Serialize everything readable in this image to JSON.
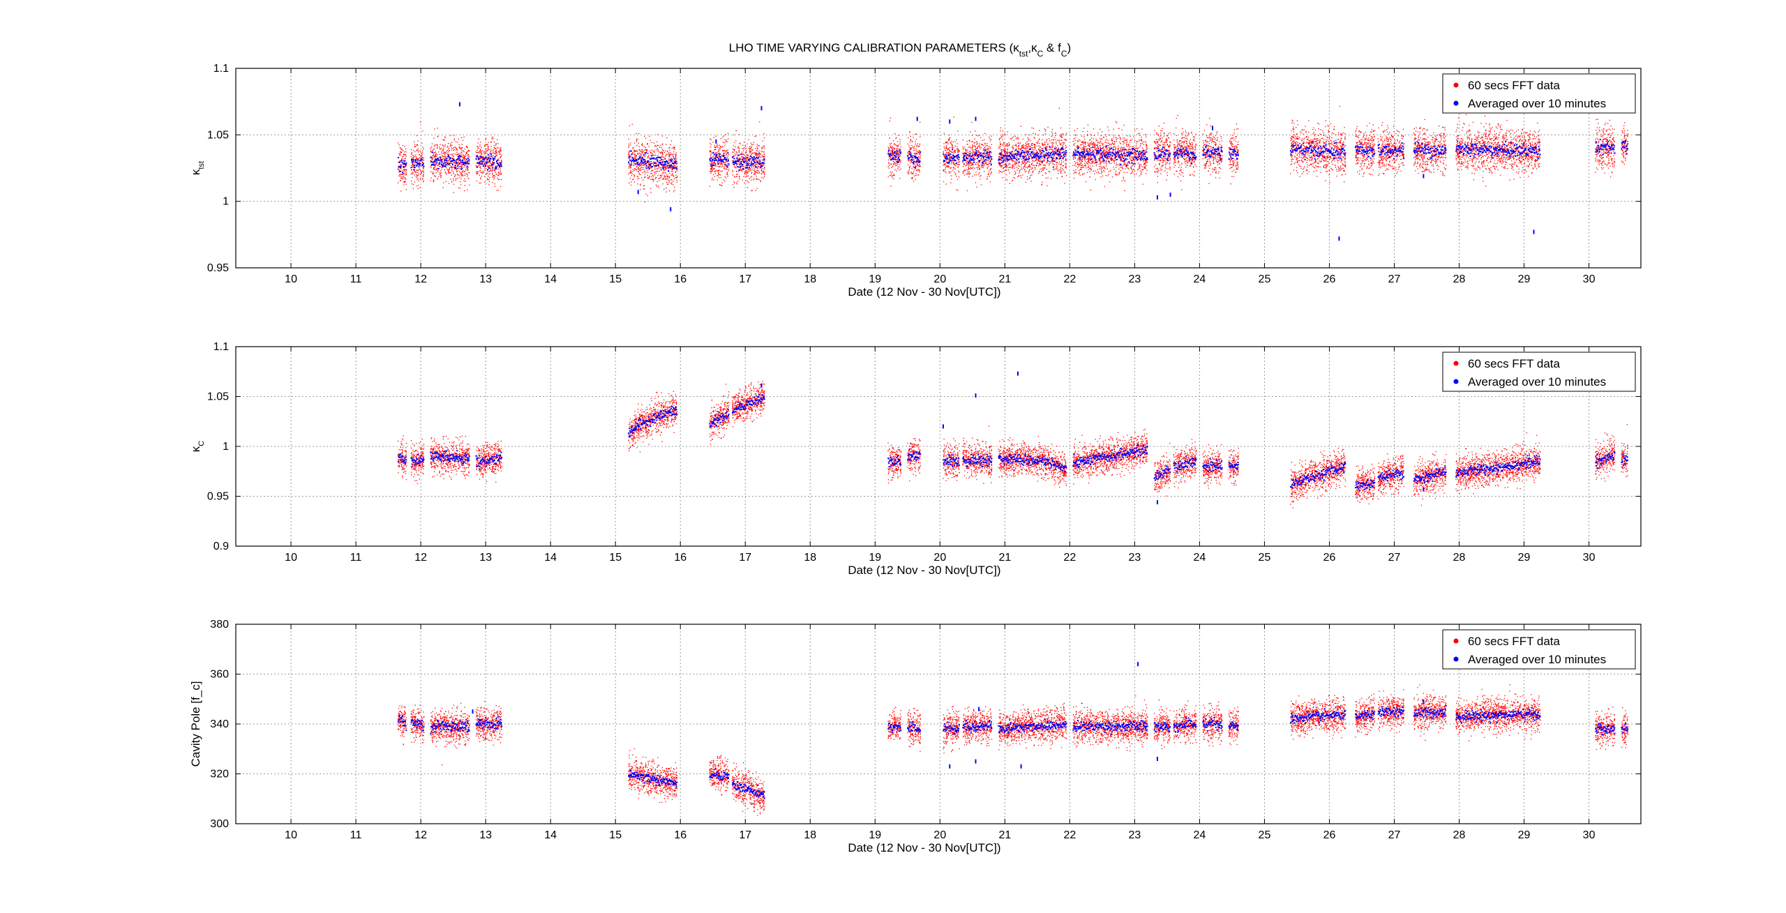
{
  "figure": {
    "title_main": "LHO TIME VARYING CALIBRATION PARAMETERS (",
    "title_k1": "κ",
    "title_k1_sub": "tst",
    "title_sep": ",",
    "title_k2": "κ",
    "title_k2_sub": "C",
    "title_amp": " & f",
    "title_f_sub": "C",
    "title_close": ")"
  },
  "colors": {
    "fft": "#ff0000",
    "avg": "#0000ff",
    "grid": "#9a9a9a"
  },
  "legend": {
    "fft": "60 secs FFT data",
    "avg": "Averaged over 10 minutes"
  },
  "chart_data": [
    {
      "type": "scatter",
      "ylabel": "κ",
      "ylabel_sub": "tst",
      "xlabel": "Date  (12 Nov - 30 Nov[UTC])",
      "xlim": [
        9.15,
        30.8
      ],
      "ylim": [
        0.95,
        1.1
      ],
      "xticks": [
        10,
        11,
        12,
        13,
        14,
        15,
        16,
        17,
        18,
        19,
        20,
        21,
        22,
        23,
        24,
        25,
        26,
        27,
        28,
        29,
        30
      ],
      "yticks": [
        0.95,
        1,
        1.05,
        1.1
      ],
      "ytick_labels": [
        "0.95",
        "1",
        "1.05",
        "1.1"
      ],
      "grid": true,
      "legend_position": "top-right",
      "noise_fft": 0.008,
      "noise_avg": 0.0025,
      "segments": [
        {
          "start": 11.65,
          "end": 11.78,
          "y_start": 1.027,
          "y_end": 1.027
        },
        {
          "start": 11.85,
          "end": 12.05,
          "y_start": 1.029,
          "y_end": 1.029
        },
        {
          "start": 12.15,
          "end": 12.75,
          "y_start": 1.03,
          "y_end": 1.029
        },
        {
          "start": 12.85,
          "end": 13.25,
          "y_start": 1.03,
          "y_end": 1.029
        },
        {
          "start": 15.2,
          "end": 15.95,
          "y_start": 1.031,
          "y_end": 1.027
        },
        {
          "start": 16.45,
          "end": 16.75,
          "y_start": 1.032,
          "y_end": 1.031
        },
        {
          "start": 16.8,
          "end": 17.3,
          "y_start": 1.03,
          "y_end": 1.029
        },
        {
          "start": 19.2,
          "end": 19.4,
          "y_start": 1.034,
          "y_end": 1.034
        },
        {
          "start": 19.5,
          "end": 19.7,
          "y_start": 1.033,
          "y_end": 1.033
        },
        {
          "start": 20.05,
          "end": 20.3,
          "y_start": 1.033,
          "y_end": 1.033
        },
        {
          "start": 20.35,
          "end": 20.8,
          "y_start": 1.033,
          "y_end": 1.033
        },
        {
          "start": 20.9,
          "end": 21.95,
          "y_start": 1.033,
          "y_end": 1.036
        },
        {
          "start": 22.05,
          "end": 23.2,
          "y_start": 1.036,
          "y_end": 1.034
        },
        {
          "start": 23.3,
          "end": 23.55,
          "y_start": 1.037,
          "y_end": 1.036
        },
        {
          "start": 23.6,
          "end": 23.95,
          "y_start": 1.036,
          "y_end": 1.036
        },
        {
          "start": 24.05,
          "end": 24.35,
          "y_start": 1.037,
          "y_end": 1.037
        },
        {
          "start": 24.45,
          "end": 24.6,
          "y_start": 1.036,
          "y_end": 1.036
        },
        {
          "start": 25.4,
          "end": 26.25,
          "y_start": 1.039,
          "y_end": 1.037
        },
        {
          "start": 26.4,
          "end": 26.7,
          "y_start": 1.039,
          "y_end": 1.038
        },
        {
          "start": 26.75,
          "end": 27.15,
          "y_start": 1.038,
          "y_end": 1.038
        },
        {
          "start": 27.3,
          "end": 27.8,
          "y_start": 1.039,
          "y_end": 1.038
        },
        {
          "start": 27.95,
          "end": 29.25,
          "y_start": 1.039,
          "y_end": 1.038
        },
        {
          "start": 30.1,
          "end": 30.4,
          "y_start": 1.04,
          "y_end": 1.04
        },
        {
          "start": 30.5,
          "end": 30.6,
          "y_start": 1.041,
          "y_end": 1.041
        }
      ],
      "outliers": [
        {
          "x": 12.6,
          "y": 1.073
        },
        {
          "x": 15.35,
          "y": 1.007
        },
        {
          "x": 15.85,
          "y": 0.994
        },
        {
          "x": 17.25,
          "y": 1.07
        },
        {
          "x": 19.65,
          "y": 1.062
        },
        {
          "x": 20.15,
          "y": 1.06
        },
        {
          "x": 20.55,
          "y": 1.062
        },
        {
          "x": 23.35,
          "y": 1.003
        },
        {
          "x": 23.55,
          "y": 1.005
        },
        {
          "x": 24.2,
          "y": 1.055
        },
        {
          "x": 26.15,
          "y": 0.972
        },
        {
          "x": 27.45,
          "y": 1.019
        },
        {
          "x": 29.15,
          "y": 0.977
        },
        {
          "x": 16.55,
          "y": 1.045
        }
      ]
    },
    {
      "type": "scatter",
      "ylabel": "κ",
      "ylabel_sub": "C",
      "xlabel": "Date  (12 Nov - 30 Nov[UTC])",
      "xlim": [
        9.15,
        30.8
      ],
      "ylim": [
        0.9,
        1.1
      ],
      "xticks": [
        10,
        11,
        12,
        13,
        14,
        15,
        16,
        17,
        18,
        19,
        20,
        21,
        22,
        23,
        24,
        25,
        26,
        27,
        28,
        29,
        30
      ],
      "yticks": [
        0.9,
        0.95,
        1,
        1.05,
        1.1
      ],
      "ytick_labels": [
        "0.9",
        "0.95",
        "1",
        "1.05",
        "1.1"
      ],
      "grid": true,
      "legend_position": "top-right",
      "noise_fft": 0.008,
      "noise_avg": 0.0025,
      "segments": [
        {
          "start": 11.65,
          "end": 11.78,
          "y_start": 0.99,
          "y_end": 0.985
        },
        {
          "start": 11.85,
          "end": 12.05,
          "y_start": 0.984,
          "y_end": 0.987
        },
        {
          "start": 12.15,
          "end": 12.75,
          "y_start": 0.99,
          "y_end": 0.988
        },
        {
          "start": 12.85,
          "end": 13.25,
          "y_start": 0.984,
          "y_end": 0.989
        },
        {
          "start": 15.2,
          "end": 15.95,
          "y_start": 1.008,
          "y_end": 1.036,
          "curve": "sqrt"
        },
        {
          "start": 16.45,
          "end": 16.75,
          "y_start": 1.018,
          "y_end": 1.033,
          "curve": "sqrt"
        },
        {
          "start": 16.8,
          "end": 17.3,
          "y_start": 1.037,
          "y_end": 1.049
        },
        {
          "start": 19.2,
          "end": 19.4,
          "y_start": 0.984,
          "y_end": 0.985
        },
        {
          "start": 19.5,
          "end": 19.7,
          "y_start": 0.99,
          "y_end": 0.992
        },
        {
          "start": 20.05,
          "end": 20.3,
          "y_start": 0.986,
          "y_end": 0.984
        },
        {
          "start": 20.35,
          "end": 20.8,
          "y_start": 0.986,
          "y_end": 0.986
        },
        {
          "start": 20.9,
          "end": 21.95,
          "y_start": 0.988,
          "y_end": 0.975,
          "curve": "late-drop"
        },
        {
          "start": 22.05,
          "end": 23.2,
          "y_start": 0.983,
          "y_end": 0.997
        },
        {
          "start": 23.3,
          "end": 23.55,
          "y_start": 0.968,
          "y_end": 0.977
        },
        {
          "start": 23.6,
          "end": 23.95,
          "y_start": 0.98,
          "y_end": 0.986
        },
        {
          "start": 24.05,
          "end": 24.35,
          "y_start": 0.98,
          "y_end": 0.98
        },
        {
          "start": 24.45,
          "end": 24.6,
          "y_start": 0.98,
          "y_end": 0.98
        },
        {
          "start": 25.4,
          "end": 26.25,
          "y_start": 0.962,
          "y_end": 0.98
        },
        {
          "start": 26.4,
          "end": 26.7,
          "y_start": 0.961,
          "y_end": 0.962
        },
        {
          "start": 26.75,
          "end": 27.15,
          "y_start": 0.968,
          "y_end": 0.974
        },
        {
          "start": 27.3,
          "end": 27.8,
          "y_start": 0.966,
          "y_end": 0.975
        },
        {
          "start": 27.95,
          "end": 29.25,
          "y_start": 0.973,
          "y_end": 0.985
        },
        {
          "start": 30.1,
          "end": 30.4,
          "y_start": 0.985,
          "y_end": 0.991
        },
        {
          "start": 30.5,
          "end": 30.6,
          "y_start": 0.986,
          "y_end": 0.988
        }
      ],
      "outliers": [
        {
          "x": 20.05,
          "y": 1.02
        },
        {
          "x": 20.55,
          "y": 1.051
        },
        {
          "x": 21.2,
          "y": 1.073
        },
        {
          "x": 23.35,
          "y": 0.944
        },
        {
          "x": 17.25,
          "y": 1.061
        },
        {
          "x": 27.45,
          "y": 0.957
        },
        {
          "x": 12.55,
          "y": 0.989
        }
      ]
    },
    {
      "type": "scatter",
      "ylabel": "Cavity Pole [f_c]",
      "ylabel_sub": "",
      "xlabel": "Date  (12 Nov - 30 Nov[UTC])",
      "xlim": [
        9.15,
        30.8
      ],
      "ylim": [
        300,
        380
      ],
      "xticks": [
        10,
        11,
        12,
        13,
        14,
        15,
        16,
        17,
        18,
        19,
        20,
        21,
        22,
        23,
        24,
        25,
        26,
        27,
        28,
        29,
        30
      ],
      "yticks": [
        300,
        320,
        340,
        360,
        380
      ],
      "ytick_labels": [
        "300",
        "320",
        "340",
        "360",
        "380"
      ],
      "grid": true,
      "legend_position": "top-right",
      "noise_fft": 3.2,
      "noise_avg": 1.0,
      "segments": [
        {
          "start": 11.65,
          "end": 11.78,
          "y_start": 342,
          "y_end": 340
        },
        {
          "start": 11.85,
          "end": 12.05,
          "y_start": 341,
          "y_end": 339
        },
        {
          "start": 12.15,
          "end": 12.75,
          "y_start": 339,
          "y_end": 339
        },
        {
          "start": 12.85,
          "end": 13.25,
          "y_start": 340,
          "y_end": 340
        },
        {
          "start": 15.2,
          "end": 15.95,
          "y_start": 320,
          "y_end": 316
        },
        {
          "start": 16.45,
          "end": 16.75,
          "y_start": 320,
          "y_end": 319
        },
        {
          "start": 16.8,
          "end": 17.3,
          "y_start": 316,
          "y_end": 311
        },
        {
          "start": 19.2,
          "end": 19.4,
          "y_start": 339,
          "y_end": 339
        },
        {
          "start": 19.5,
          "end": 19.7,
          "y_start": 338,
          "y_end": 338
        },
        {
          "start": 20.05,
          "end": 20.3,
          "y_start": 338,
          "y_end": 338
        },
        {
          "start": 20.35,
          "end": 20.8,
          "y_start": 339,
          "y_end": 339
        },
        {
          "start": 20.9,
          "end": 21.95,
          "y_start": 338,
          "y_end": 340
        },
        {
          "start": 22.05,
          "end": 23.2,
          "y_start": 339,
          "y_end": 339
        },
        {
          "start": 23.3,
          "end": 23.55,
          "y_start": 339,
          "y_end": 339
        },
        {
          "start": 23.6,
          "end": 23.95,
          "y_start": 339,
          "y_end": 340
        },
        {
          "start": 24.05,
          "end": 24.35,
          "y_start": 340,
          "y_end": 340
        },
        {
          "start": 24.45,
          "end": 24.6,
          "y_start": 339,
          "y_end": 339
        },
        {
          "start": 25.4,
          "end": 26.25,
          "y_start": 342,
          "y_end": 344
        },
        {
          "start": 26.4,
          "end": 26.7,
          "y_start": 343,
          "y_end": 344
        },
        {
          "start": 26.75,
          "end": 27.15,
          "y_start": 345,
          "y_end": 345
        },
        {
          "start": 27.3,
          "end": 27.8,
          "y_start": 344,
          "y_end": 345
        },
        {
          "start": 27.95,
          "end": 29.25,
          "y_start": 343,
          "y_end": 344
        },
        {
          "start": 30.1,
          "end": 30.4,
          "y_start": 338,
          "y_end": 338
        },
        {
          "start": 30.5,
          "end": 30.6,
          "y_start": 338,
          "y_end": 338
        }
      ],
      "outliers": [
        {
          "x": 23.05,
          "y": 364
        },
        {
          "x": 23.35,
          "y": 326
        },
        {
          "x": 20.15,
          "y": 323
        },
        {
          "x": 20.55,
          "y": 325
        },
        {
          "x": 21.25,
          "y": 323
        },
        {
          "x": 12.8,
          "y": 345
        },
        {
          "x": 27.45,
          "y": 349
        },
        {
          "x": 20.6,
          "y": 346
        }
      ]
    }
  ]
}
